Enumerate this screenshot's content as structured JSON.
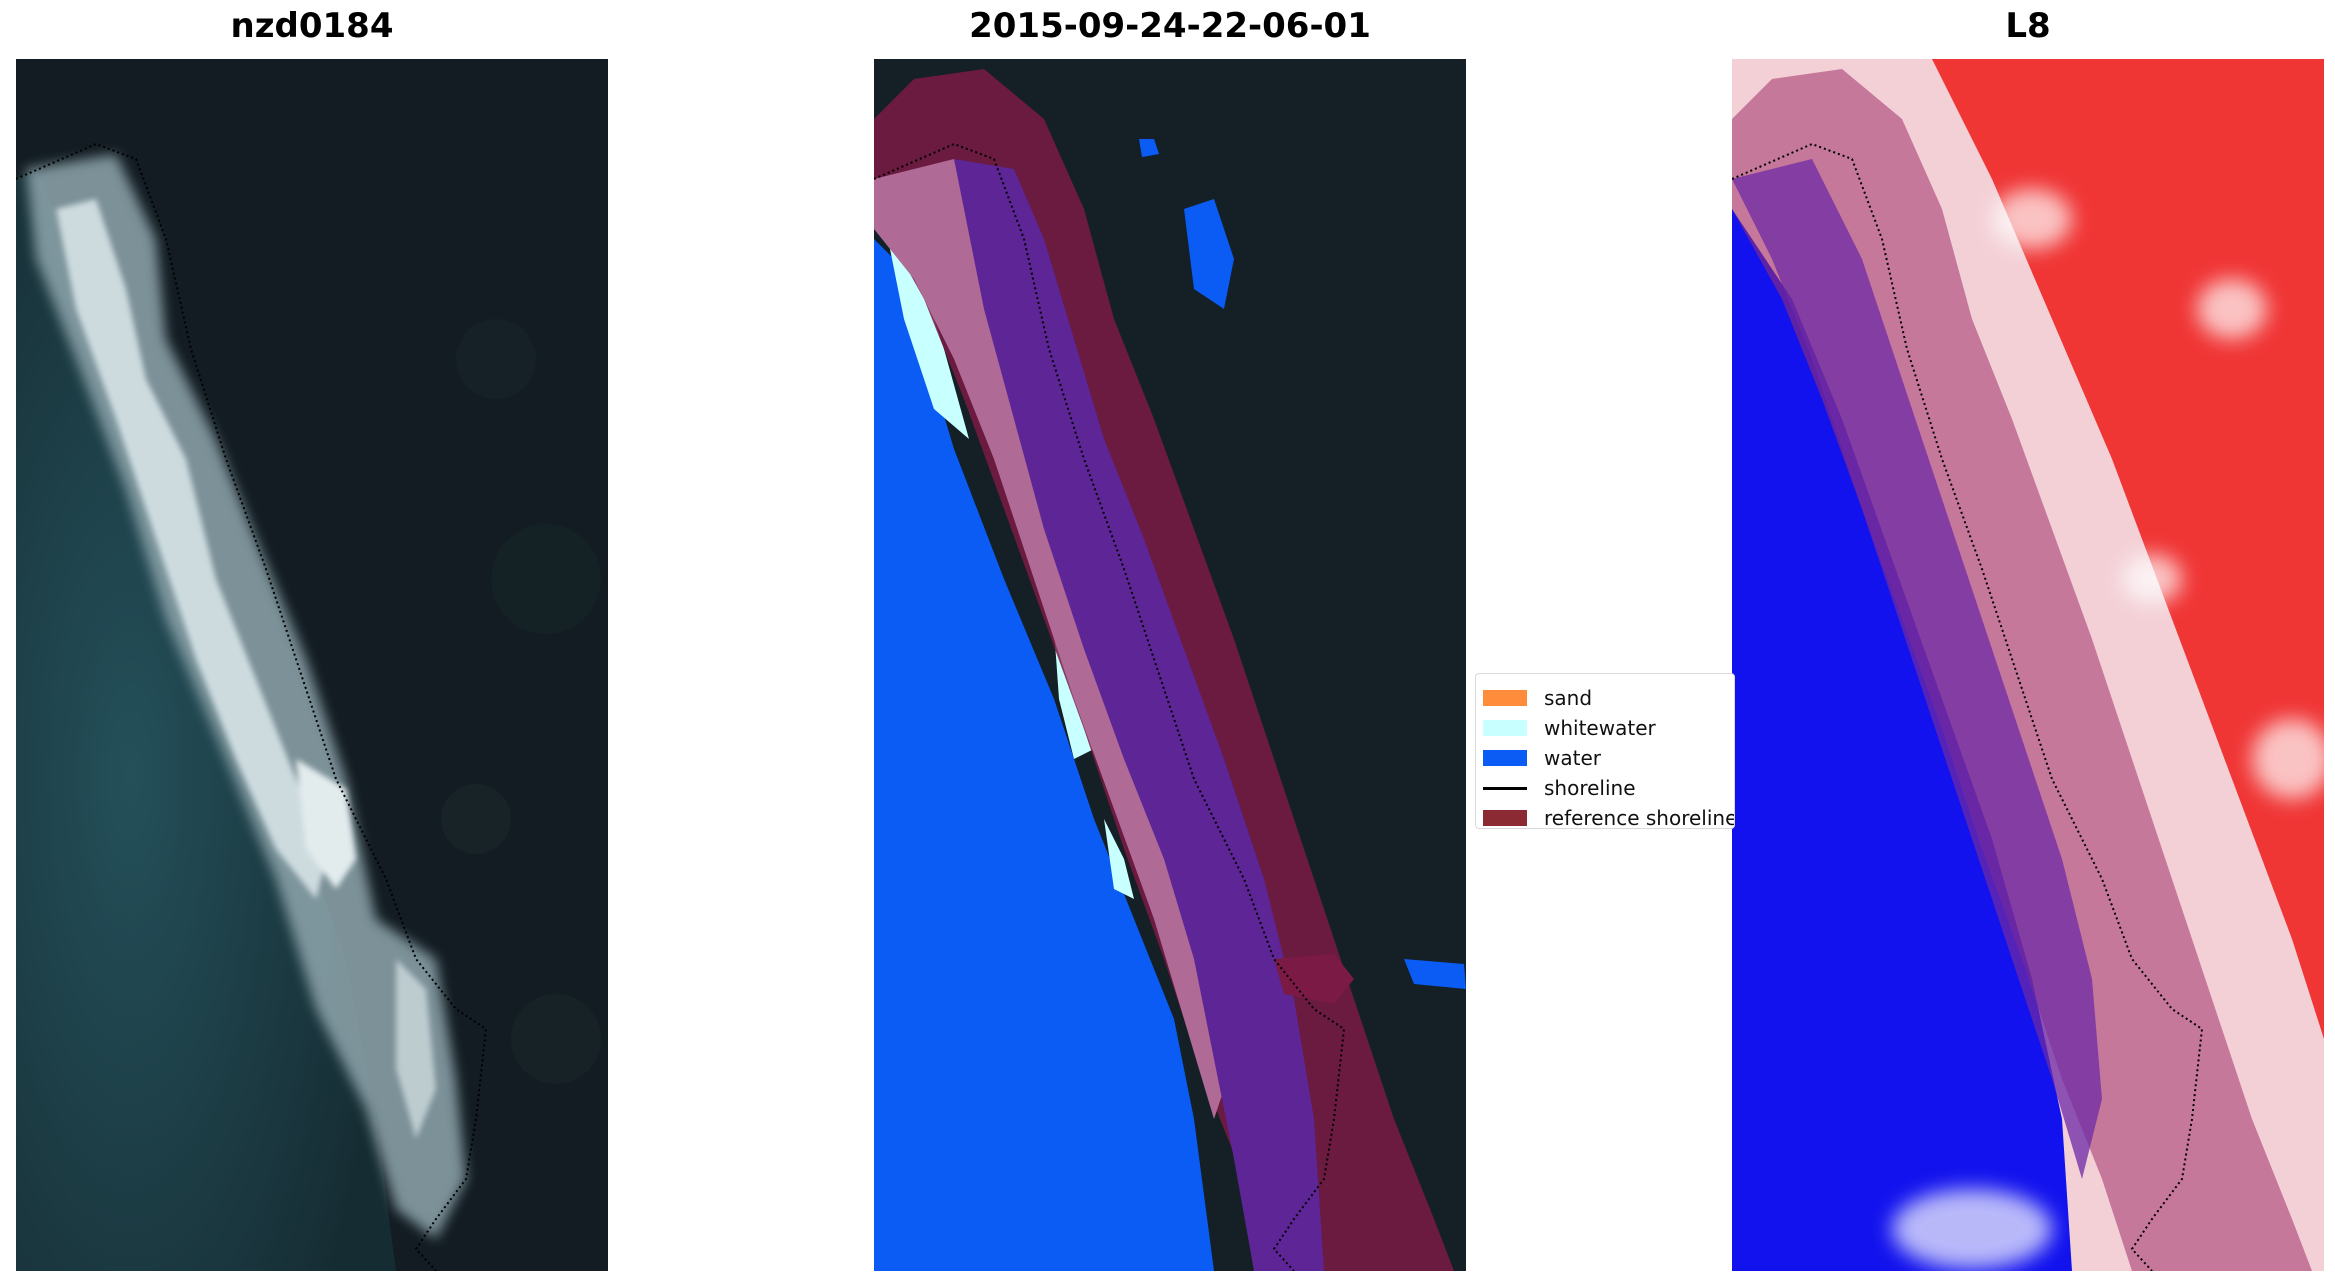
{
  "panels": [
    {
      "title": "nzd0184"
    },
    {
      "title": "2015-09-24-22-06-01"
    },
    {
      "title": "L8"
    }
  ],
  "legend": {
    "items": [
      {
        "label": "sand",
        "color": "#ff8c3a",
        "kind": "patch"
      },
      {
        "label": "whitewater",
        "color": "#c8ffff",
        "kind": "patch"
      },
      {
        "label": "water",
        "color": "#0a5cf5",
        "kind": "patch"
      },
      {
        "label": "shoreline",
        "color": "#000000",
        "kind": "line"
      },
      {
        "label": "reference shoreline",
        "color": "#8b2a33",
        "kind": "patch"
      }
    ]
  },
  "colors": {
    "land_dark": "#16232b",
    "ocean_teal": "#1c3f47",
    "water": "#0a5cf5",
    "whitewater": "#c8ffff",
    "buffer": "#7a1a45",
    "classified_sand_overlay": "#b06a96",
    "index_red": "#f02a2a",
    "index_blue": "#1010ee"
  }
}
